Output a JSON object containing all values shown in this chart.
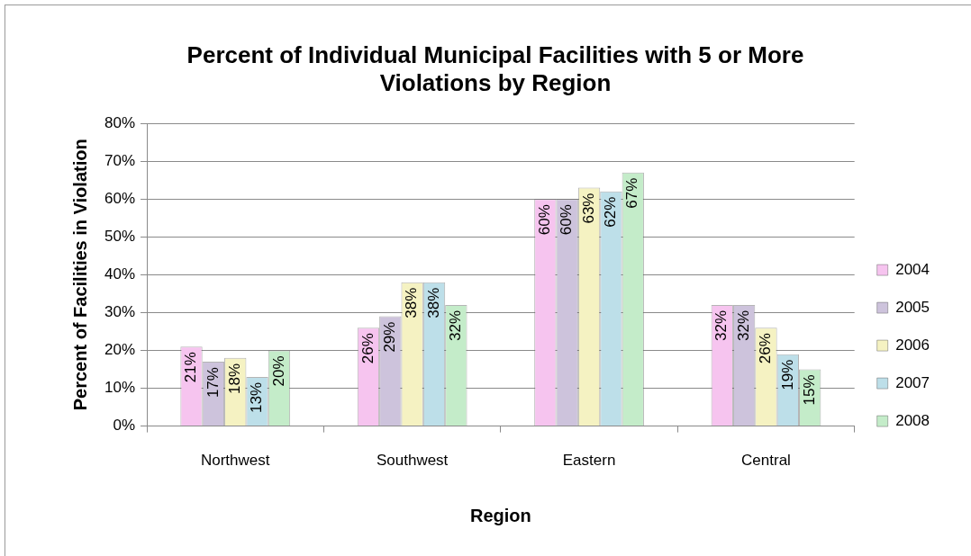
{
  "chart_data": {
    "type": "bar",
    "title": "Percent of Individual Municipal Facilities with 5 or More Violations by Region",
    "xlabel": "Region",
    "ylabel": "Percent of Facilities in Violation",
    "categories": [
      "Northwest",
      "Southwest",
      "Eastern",
      "Central"
    ],
    "series": [
      {
        "name": "2004",
        "color": "#f6c4ef",
        "values": [
          21,
          26,
          60,
          32
        ],
        "value_labels": [
          "21%",
          "26%",
          "60%",
          "32%"
        ]
      },
      {
        "name": "2005",
        "color": "#cdc3dc",
        "values": [
          17,
          29,
          60,
          32
        ],
        "value_labels": [
          "17%",
          "29%",
          "60%",
          "32%"
        ]
      },
      {
        "name": "2006",
        "color": "#f5f2c2",
        "values": [
          18,
          38,
          63,
          26
        ],
        "value_labels": [
          "18%",
          "38%",
          "63%",
          "26%"
        ]
      },
      {
        "name": "2007",
        "color": "#bddfe9",
        "values": [
          13,
          38,
          62,
          19
        ],
        "value_labels": [
          "13%",
          "38%",
          "62%",
          "19%"
        ]
      },
      {
        "name": "2008",
        "color": "#c4ecc9",
        "values": [
          20,
          32,
          67,
          15
        ],
        "value_labels": [
          "20%",
          "32%",
          "67%",
          "15%"
        ]
      }
    ],
    "ylim": [
      0,
      80
    ],
    "yticks": [
      {
        "value": 0,
        "label": "0%"
      },
      {
        "value": 10,
        "label": "10%"
      },
      {
        "value": 20,
        "label": "20%"
      },
      {
        "value": 30,
        "label": "30%"
      },
      {
        "value": 40,
        "label": "40%"
      },
      {
        "value": 50,
        "label": "50%"
      },
      {
        "value": 60,
        "label": "60%"
      },
      {
        "value": 70,
        "label": "70%"
      },
      {
        "value": 80,
        "label": "80%"
      }
    ],
    "grid": "y",
    "legend": "right"
  }
}
